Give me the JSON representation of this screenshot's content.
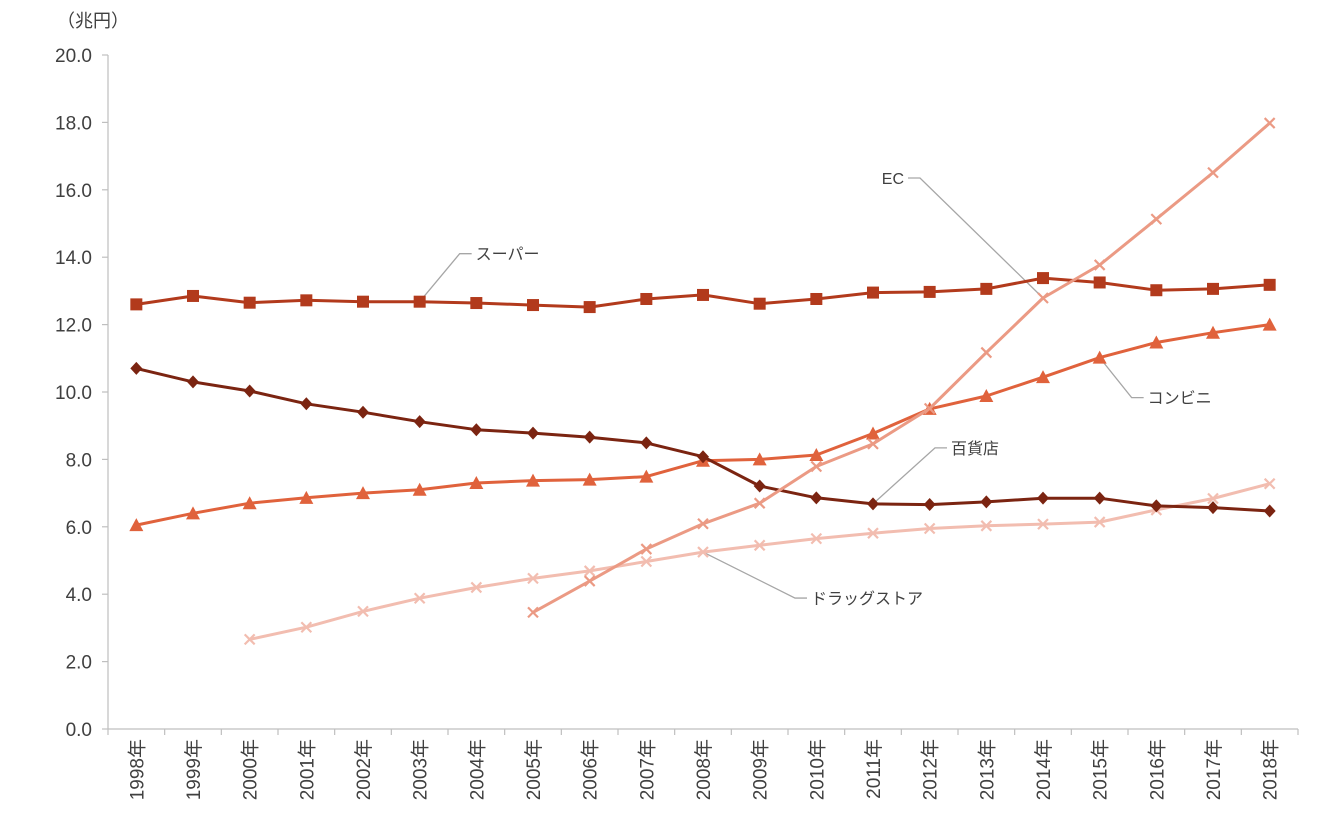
{
  "chart_data": {
    "type": "line",
    "title": "",
    "y_unit_label": "（兆円）",
    "ylim": [
      0,
      20
    ],
    "y_ticks": [
      "0.0",
      "2.0",
      "4.0",
      "6.0",
      "8.0",
      "10.0",
      "12.0",
      "14.0",
      "16.0",
      "18.0",
      "20.0"
    ],
    "categories": [
      "1998年",
      "1999年",
      "2000年",
      "2001年",
      "2002年",
      "2003年",
      "2004年",
      "2005年",
      "2006年",
      "2007年",
      "2008年",
      "2009年",
      "2010年",
      "2011年",
      "2012年",
      "2013年",
      "2014年",
      "2015年",
      "2016年",
      "2017年",
      "2018年"
    ],
    "grid": false,
    "legend": "none (series labeled by callouts)",
    "series": [
      {
        "name": "スーパー",
        "color": "#b23a1c",
        "marker": "square",
        "values": [
          12.6,
          12.85,
          12.65,
          12.72,
          12.68,
          12.68,
          12.64,
          12.58,
          12.52,
          12.76,
          12.88,
          12.62,
          12.76,
          12.95,
          12.97,
          13.06,
          13.38,
          13.25,
          13.02,
          13.06,
          13.18
        ]
      },
      {
        "name": "百貨店",
        "color": "#7b2411",
        "marker": "diamond",
        "values": [
          10.7,
          10.3,
          10.03,
          9.65,
          9.4,
          9.12,
          8.88,
          8.78,
          8.66,
          8.49,
          8.08,
          7.21,
          6.86,
          6.68,
          6.66,
          6.74,
          6.85,
          6.85,
          6.62,
          6.57,
          6.47
        ]
      },
      {
        "name": "コンビニ",
        "color": "#e0623c",
        "marker": "triangle",
        "values": [
          6.05,
          6.4,
          6.7,
          6.86,
          7.0,
          7.1,
          7.3,
          7.37,
          7.4,
          7.49,
          7.96,
          8.0,
          8.13,
          8.77,
          9.5,
          9.88,
          10.44,
          11.02,
          11.47,
          11.76,
          12.0
        ]
      },
      {
        "name": "EC",
        "color": "#eb9a84",
        "marker": "x",
        "values": [
          null,
          null,
          null,
          null,
          null,
          null,
          null,
          3.46,
          4.39,
          5.34,
          6.09,
          6.7,
          7.79,
          8.46,
          9.51,
          11.17,
          12.79,
          13.77,
          15.13,
          16.51,
          17.98
        ]
      },
      {
        "name": "ドラッグストア",
        "color": "#f2bdb0",
        "marker": "x",
        "values": [
          null,
          null,
          2.66,
          3.02,
          3.49,
          3.88,
          4.2,
          4.47,
          4.69,
          4.97,
          5.25,
          5.45,
          5.65,
          5.81,
          5.95,
          6.03,
          6.08,
          6.14,
          6.5,
          6.84,
          7.28
        ]
      }
    ],
    "annotations": [
      {
        "text": "スーパー",
        "series": "スーパー",
        "point_index": 5,
        "position": "above"
      },
      {
        "text": "EC",
        "series": "EC",
        "point_index": 16,
        "position": "upper-left"
      },
      {
        "text": "コンビニ",
        "series": "コンビニ",
        "point_index": 17,
        "position": "lower-right"
      },
      {
        "text": "百貨店",
        "series": "百貨店",
        "point_index": 13,
        "position": "upper-right"
      },
      {
        "text": "ドラッグストア",
        "series": "ドラッグストア",
        "point_index": 10,
        "position": "lower-right"
      }
    ]
  }
}
